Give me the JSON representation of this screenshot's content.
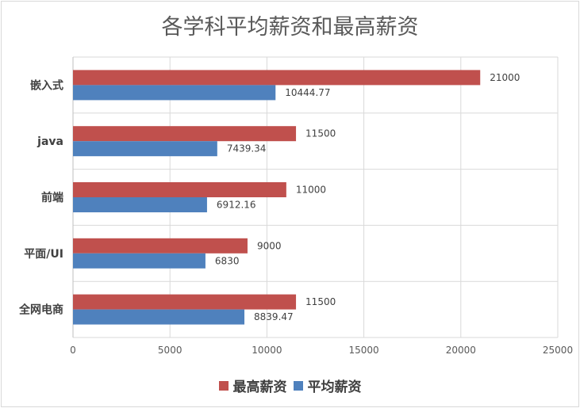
{
  "chart_data": {
    "type": "bar",
    "orientation": "horizontal",
    "title": "各学科平均薪资和最高薪资",
    "categories": [
      "嵌入式",
      "java",
      "前端",
      "平面/UI",
      "全网电商"
    ],
    "series": [
      {
        "name": "最高薪资",
        "color": "#c0504d",
        "values": [
          21000,
          11500,
          11000,
          9000,
          11500
        ],
        "labels": [
          "21000",
          "11500",
          "11000",
          "9000",
          "11500"
        ]
      },
      {
        "name": "平均薪资",
        "color": "#4f81bd",
        "values": [
          10444.77,
          7439.34,
          6912.16,
          6830,
          8839.47
        ],
        "labels": [
          "10444.77",
          "7439.34",
          "6912.16",
          "6830",
          "8839.47"
        ]
      }
    ],
    "xlim": [
      0,
      25000
    ],
    "xticks": [
      "0",
      "5000",
      "10000",
      "15000",
      "20000",
      "25000"
    ],
    "grid": true,
    "legend_position": "bottom"
  }
}
